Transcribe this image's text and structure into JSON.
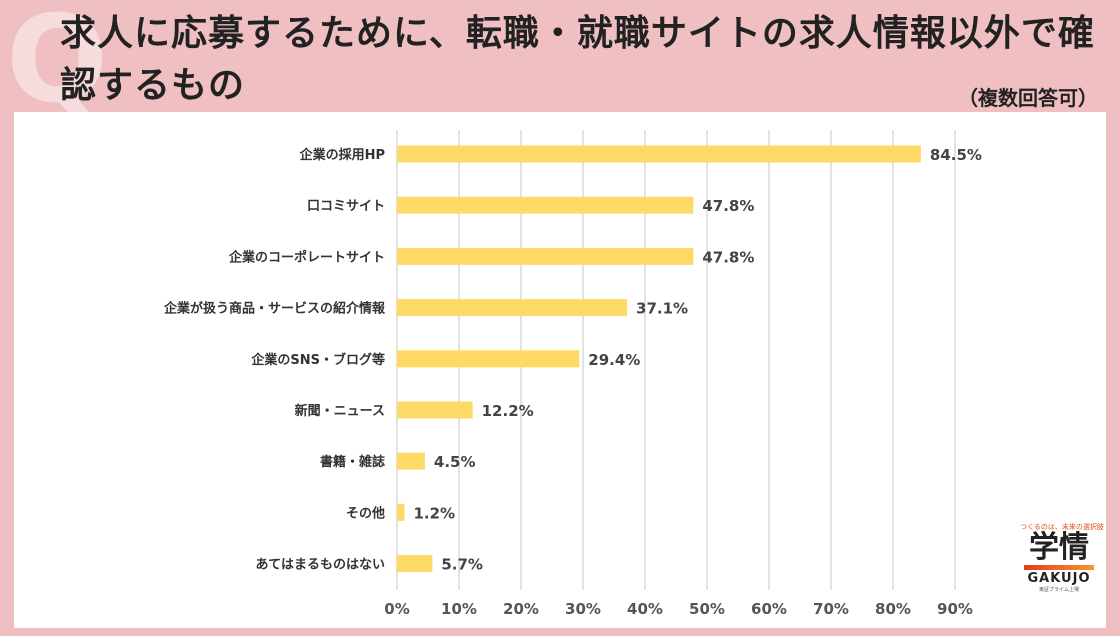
{
  "header": {
    "title": "求人に応募するために、転職・就職サイトの求人情報以外で確認するもの",
    "subtitle": "（複数回答可）"
  },
  "logo": {
    "tagline": "つくるのは、未来の選択肢",
    "main": "学情",
    "english": "GAKUJO",
    "sub": "東証プライム上場"
  },
  "chart_data": {
    "type": "bar",
    "orientation": "horizontal",
    "categories": [
      "企業の採用HP",
      "口コミサイト",
      "企業のコーポレートサイト",
      "企業が扱う商品・サービスの紹介情報",
      "企業のSNS・ブログ等",
      "新聞・ニュース",
      "書籍・雑誌",
      "その他",
      "あてはまるものはない"
    ],
    "values": [
      84.5,
      47.8,
      47.8,
      37.1,
      29.4,
      12.2,
      4.5,
      1.2,
      5.7
    ],
    "value_labels": [
      "84.5%",
      "47.8%",
      "47.8%",
      "37.1%",
      "29.4%",
      "12.2%",
      "4.5%",
      "1.2%",
      "5.7%"
    ],
    "xlim": [
      0,
      90
    ],
    "xticks": [
      "0%",
      "10%",
      "20%",
      "30%",
      "40%",
      "50%",
      "60%",
      "70%",
      "80%",
      "90%"
    ],
    "grid": true,
    "bar_color": "#ffd966",
    "grid_color": "#d9d9d9"
  }
}
